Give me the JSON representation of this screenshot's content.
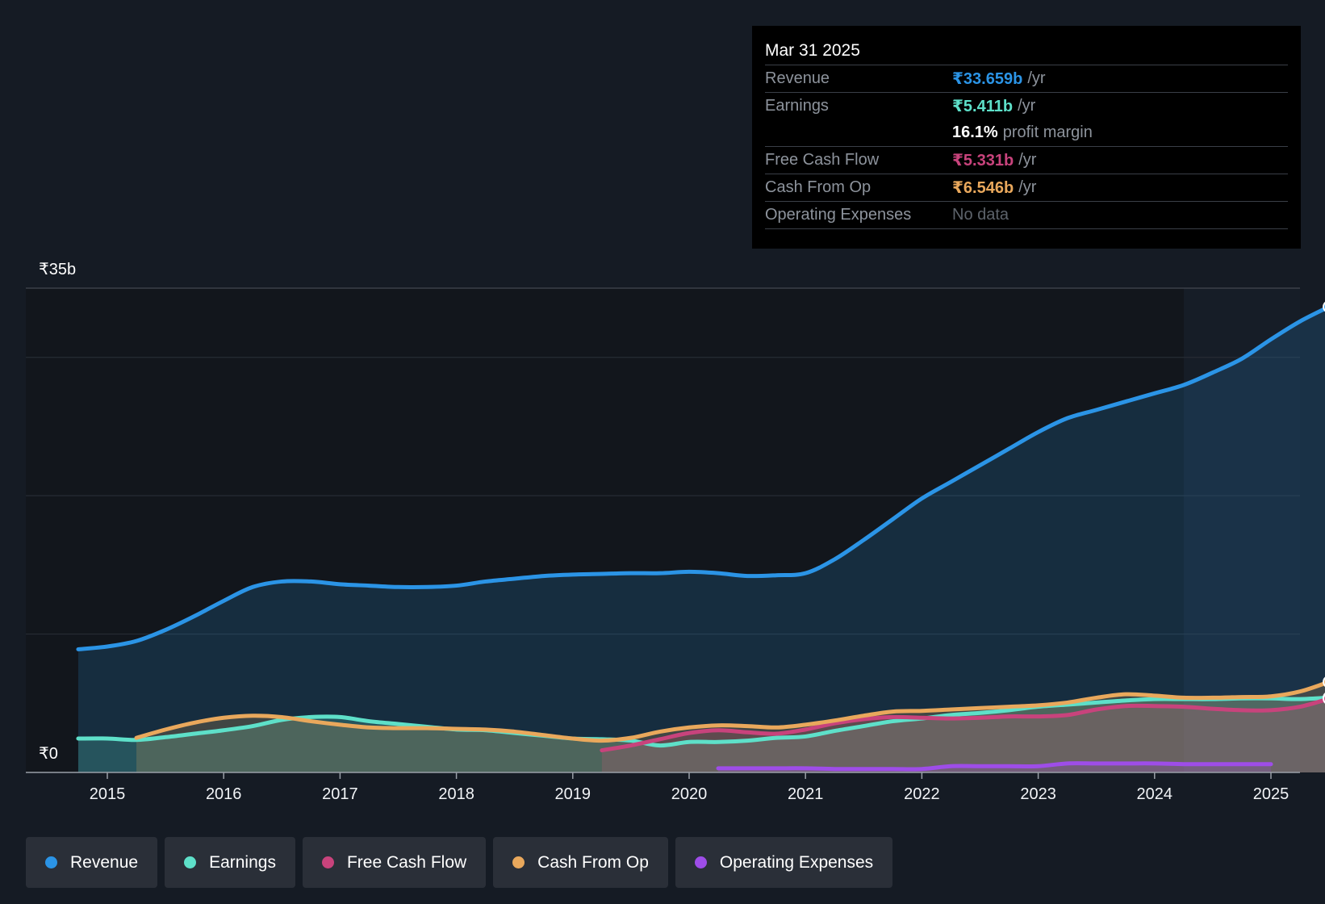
{
  "chart_data": {
    "type": "area",
    "y_axis_top_label": "₹35b",
    "y_axis_bottom_label": "₹0",
    "ylim": [
      0,
      35
    ],
    "x_ticks": [
      "2015",
      "2016",
      "2017",
      "2018",
      "2019",
      "2020",
      "2021",
      "2022",
      "2023",
      "2024",
      "2025"
    ],
    "series": [
      {
        "name": "Revenue",
        "color": "#2b94e6",
        "points": [
          [
            2014.75,
            8.9
          ],
          [
            2015.0,
            9.1
          ],
          [
            2015.25,
            9.5
          ],
          [
            2015.5,
            10.3
          ],
          [
            2015.75,
            11.3
          ],
          [
            2016.0,
            12.4
          ],
          [
            2016.25,
            13.4
          ],
          [
            2016.5,
            13.8
          ],
          [
            2016.75,
            13.8
          ],
          [
            2017.0,
            13.6
          ],
          [
            2017.25,
            13.5
          ],
          [
            2017.5,
            13.4
          ],
          [
            2017.75,
            13.4
          ],
          [
            2018.0,
            13.5
          ],
          [
            2018.25,
            13.8
          ],
          [
            2018.5,
            14.0
          ],
          [
            2018.75,
            14.2
          ],
          [
            2019.0,
            14.3
          ],
          [
            2019.25,
            14.35
          ],
          [
            2019.5,
            14.4
          ],
          [
            2019.75,
            14.4
          ],
          [
            2020.0,
            14.5
          ],
          [
            2020.25,
            14.4
          ],
          [
            2020.5,
            14.2
          ],
          [
            2020.75,
            14.25
          ],
          [
            2021.0,
            14.4
          ],
          [
            2021.25,
            15.4
          ],
          [
            2021.5,
            16.8
          ],
          [
            2021.75,
            18.3
          ],
          [
            2022.0,
            19.8
          ],
          [
            2022.25,
            21.0
          ],
          [
            2022.5,
            22.2
          ],
          [
            2022.75,
            23.4
          ],
          [
            2023.0,
            24.6
          ],
          [
            2023.25,
            25.6
          ],
          [
            2023.5,
            26.2
          ],
          [
            2023.75,
            26.8
          ],
          [
            2024.0,
            27.4
          ],
          [
            2024.25,
            28.0
          ],
          [
            2024.5,
            28.9
          ],
          [
            2024.75,
            29.9
          ],
          [
            2025.0,
            31.3
          ],
          [
            2025.25,
            32.6
          ],
          [
            2025.5,
            33.659
          ]
        ]
      },
      {
        "name": "Earnings",
        "color": "#5ee0c9",
        "points": [
          [
            2014.75,
            2.45
          ],
          [
            2015.0,
            2.45
          ],
          [
            2015.25,
            2.35
          ],
          [
            2015.5,
            2.55
          ],
          [
            2015.75,
            2.8
          ],
          [
            2016.0,
            3.05
          ],
          [
            2016.25,
            3.35
          ],
          [
            2016.5,
            3.8
          ],
          [
            2016.75,
            4.0
          ],
          [
            2017.0,
            4.0
          ],
          [
            2017.25,
            3.7
          ],
          [
            2017.5,
            3.5
          ],
          [
            2017.75,
            3.3
          ],
          [
            2018.0,
            3.1
          ],
          [
            2018.25,
            3.05
          ],
          [
            2018.5,
            2.85
          ],
          [
            2018.75,
            2.65
          ],
          [
            2019.0,
            2.45
          ],
          [
            2019.25,
            2.4
          ],
          [
            2019.5,
            2.3
          ],
          [
            2019.75,
            1.95
          ],
          [
            2020.0,
            2.2
          ],
          [
            2020.25,
            2.2
          ],
          [
            2020.5,
            2.3
          ],
          [
            2020.75,
            2.5
          ],
          [
            2021.0,
            2.6
          ],
          [
            2021.25,
            3.0
          ],
          [
            2021.5,
            3.35
          ],
          [
            2021.75,
            3.7
          ],
          [
            2022.0,
            3.9
          ],
          [
            2022.25,
            4.15
          ],
          [
            2022.5,
            4.3
          ],
          [
            2022.75,
            4.5
          ],
          [
            2023.0,
            4.75
          ],
          [
            2023.25,
            4.9
          ],
          [
            2023.5,
            5.05
          ],
          [
            2023.75,
            5.2
          ],
          [
            2024.0,
            5.3
          ],
          [
            2024.25,
            5.3
          ],
          [
            2024.5,
            5.3
          ],
          [
            2024.75,
            5.35
          ],
          [
            2025.0,
            5.35
          ],
          [
            2025.25,
            5.3
          ],
          [
            2025.5,
            5.411
          ]
        ]
      },
      {
        "name": "Free Cash Flow",
        "color": "#c8437c",
        "points": [
          [
            2019.25,
            1.6
          ],
          [
            2019.5,
            1.95
          ],
          [
            2019.75,
            2.4
          ],
          [
            2020.0,
            2.85
          ],
          [
            2020.25,
            3.05
          ],
          [
            2020.5,
            2.9
          ],
          [
            2020.75,
            2.8
          ],
          [
            2021.0,
            3.1
          ],
          [
            2021.25,
            3.55
          ],
          [
            2021.5,
            3.85
          ],
          [
            2021.75,
            4.0
          ],
          [
            2022.0,
            3.95
          ],
          [
            2022.25,
            3.9
          ],
          [
            2022.5,
            3.95
          ],
          [
            2022.75,
            4.05
          ],
          [
            2023.0,
            4.05
          ],
          [
            2023.25,
            4.15
          ],
          [
            2023.5,
            4.55
          ],
          [
            2023.75,
            4.8
          ],
          [
            2024.0,
            4.8
          ],
          [
            2024.25,
            4.75
          ],
          [
            2024.5,
            4.6
          ],
          [
            2024.75,
            4.5
          ],
          [
            2025.0,
            4.5
          ],
          [
            2025.25,
            4.75
          ],
          [
            2025.5,
            5.331
          ]
        ]
      },
      {
        "name": "Cash From Op",
        "color": "#e9a85c",
        "points": [
          [
            2015.25,
            2.5
          ],
          [
            2015.5,
            3.1
          ],
          [
            2015.75,
            3.6
          ],
          [
            2016.0,
            3.95
          ],
          [
            2016.25,
            4.1
          ],
          [
            2016.5,
            4.0
          ],
          [
            2016.75,
            3.7
          ],
          [
            2017.0,
            3.45
          ],
          [
            2017.25,
            3.25
          ],
          [
            2017.5,
            3.2
          ],
          [
            2017.75,
            3.2
          ],
          [
            2018.0,
            3.15
          ],
          [
            2018.25,
            3.1
          ],
          [
            2018.5,
            2.95
          ],
          [
            2018.75,
            2.7
          ],
          [
            2019.0,
            2.45
          ],
          [
            2019.25,
            2.3
          ],
          [
            2019.5,
            2.5
          ],
          [
            2019.75,
            2.95
          ],
          [
            2020.0,
            3.25
          ],
          [
            2020.25,
            3.4
          ],
          [
            2020.5,
            3.35
          ],
          [
            2020.75,
            3.25
          ],
          [
            2021.0,
            3.45
          ],
          [
            2021.25,
            3.75
          ],
          [
            2021.5,
            4.1
          ],
          [
            2021.75,
            4.4
          ],
          [
            2022.0,
            4.45
          ],
          [
            2022.25,
            4.55
          ],
          [
            2022.5,
            4.65
          ],
          [
            2022.75,
            4.75
          ],
          [
            2023.0,
            4.85
          ],
          [
            2023.25,
            5.05
          ],
          [
            2023.5,
            5.4
          ],
          [
            2023.75,
            5.65
          ],
          [
            2024.0,
            5.55
          ],
          [
            2024.25,
            5.4
          ],
          [
            2024.5,
            5.4
          ],
          [
            2024.75,
            5.45
          ],
          [
            2025.0,
            5.5
          ],
          [
            2025.25,
            5.85
          ],
          [
            2025.5,
            6.546
          ]
        ]
      },
      {
        "name": "Operating Expenses",
        "color": "#9e4de8",
        "points": [
          [
            2020.25,
            0.3
          ],
          [
            2020.5,
            0.3
          ],
          [
            2020.75,
            0.3
          ],
          [
            2021.0,
            0.3
          ],
          [
            2021.25,
            0.25
          ],
          [
            2021.5,
            0.25
          ],
          [
            2021.75,
            0.25
          ],
          [
            2022.0,
            0.25
          ],
          [
            2022.25,
            0.45
          ],
          [
            2022.5,
            0.45
          ],
          [
            2022.75,
            0.45
          ],
          [
            2023.0,
            0.45
          ],
          [
            2023.25,
            0.65
          ],
          [
            2023.5,
            0.65
          ],
          [
            2023.75,
            0.65
          ],
          [
            2024.0,
            0.65
          ],
          [
            2024.25,
            0.6
          ],
          [
            2024.5,
            0.6
          ],
          [
            2024.75,
            0.6
          ],
          [
            2025.0,
            0.6
          ]
        ]
      }
    ]
  },
  "tooltip": {
    "date": "Mar 31 2025",
    "rows": {
      "revenue": {
        "label": "Revenue",
        "value": "₹33.659b",
        "unit": "/yr",
        "color": "#2b94e6"
      },
      "earnings": {
        "label": "Earnings",
        "value": "₹5.411b",
        "unit": "/yr",
        "color": "#5ee0c9"
      },
      "margin": {
        "value": "16.1%",
        "text": "profit margin"
      },
      "fcf": {
        "label": "Free Cash Flow",
        "value": "₹5.331b",
        "unit": "/yr",
        "color": "#c8437c"
      },
      "cfo": {
        "label": "Cash From Op",
        "value": "₹6.546b",
        "unit": "/yr",
        "color": "#e9a85c"
      },
      "opex": {
        "label": "Operating Expenses",
        "value": "No data"
      }
    }
  },
  "legend": {
    "items": [
      {
        "label": "Revenue",
        "color": "#2b94e6"
      },
      {
        "label": "Earnings",
        "color": "#5ee0c9"
      },
      {
        "label": "Free Cash Flow",
        "color": "#c8437c"
      },
      {
        "label": "Cash From Op",
        "color": "#e9a85c"
      },
      {
        "label": "Operating Expenses",
        "color": "#9e4de8"
      }
    ]
  }
}
